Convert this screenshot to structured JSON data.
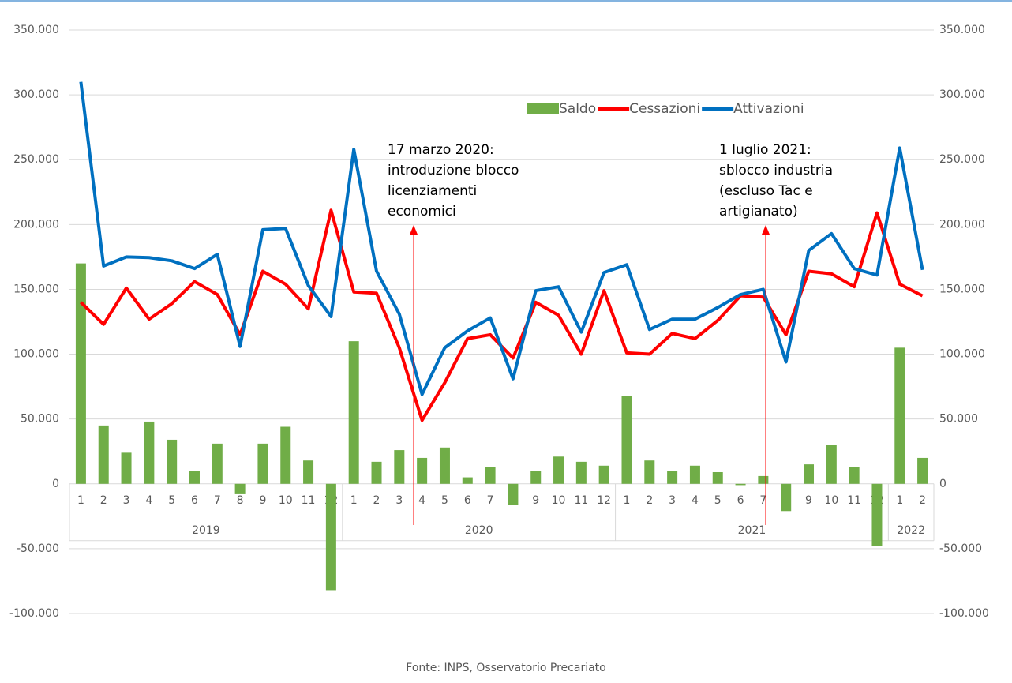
{
  "chart_data": {
    "type": "bar-line",
    "categories": [
      "1",
      "2",
      "3",
      "4",
      "5",
      "6",
      "7",
      "8",
      "9",
      "10",
      "11",
      "12",
      "1",
      "2",
      "3",
      "4",
      "5",
      "6",
      "7",
      "8",
      "9",
      "10",
      "11",
      "12",
      "1",
      "2",
      "3",
      "4",
      "5",
      "6",
      "7",
      "8",
      "9",
      "10",
      "11",
      "12",
      "1",
      "2"
    ],
    "groups": [
      "2019",
      "2020",
      "2021",
      "2022"
    ],
    "series": [
      {
        "name": "Saldo",
        "type": "bar",
        "color": "#70ad47",
        "values": [
          170000,
          45000,
          24000,
          48000,
          34000,
          10000,
          31000,
          -8000,
          31000,
          44000,
          18000,
          -82000,
          110000,
          17000,
          26000,
          20000,
          28000,
          5000,
          13000,
          -16000,
          10000,
          21000,
          17000,
          14000,
          68000,
          18000,
          10000,
          14000,
          9000,
          -1000,
          6000,
          -21000,
          15000,
          30000,
          13000,
          -48000,
          105000,
          20000
        ]
      },
      {
        "name": "Cessazioni",
        "type": "line",
        "color": "#ff0000",
        "values": [
          140000,
          123000,
          151000,
          127000,
          139000,
          156000,
          146000,
          115000,
          164000,
          154000,
          135000,
          211000,
          148000,
          147000,
          105000,
          49000,
          78000,
          112000,
          115000,
          97000,
          140000,
          130000,
          100000,
          149000,
          101000,
          100000,
          116000,
          112000,
          126000,
          145000,
          144000,
          115000,
          164000,
          162000,
          152000,
          209000,
          154000,
          145000
        ]
      },
      {
        "name": "Attivazioni",
        "type": "line",
        "color": "#0070c0",
        "values": [
          310000,
          168000,
          175000,
          174500,
          172000,
          166000,
          177000,
          106000,
          196000,
          197000,
          153000,
          129000,
          258000,
          164000,
          131000,
          69000,
          105000,
          118000,
          128000,
          81000,
          149000,
          152000,
          117000,
          163000,
          169000,
          119000,
          127000,
          127000,
          136000,
          146000,
          150000,
          94000,
          180000,
          193000,
          166000,
          161000,
          259000,
          165000
        ]
      }
    ],
    "ylim": [
      -100000,
      350000
    ],
    "yticks": [
      {
        "value": -100000,
        "label": "-100.000"
      },
      {
        "value": -50000,
        "label": "-50.000"
      },
      0,
      {
        "value": 50000,
        "label": "50.000"
      },
      {
        "value": 100000,
        "label": "100.000"
      },
      {
        "value": 150000,
        "label": "150.000"
      },
      {
        "value": 200000,
        "label": "200.000"
      },
      {
        "value": 250000,
        "label": "250.000"
      },
      {
        "value": 300000,
        "label": "300.000"
      },
      {
        "value": 350000,
        "label": "350.000"
      }
    ],
    "y2lim": [
      -100000,
      350000
    ],
    "y2ticks": [
      {
        "value": -100000,
        "label": "-100.000"
      },
      {
        "value": -50000,
        "label": "-50.000"
      },
      0,
      {
        "value": 50000,
        "label": "50.000"
      },
      {
        "value": 100000,
        "label": "100.000"
      },
      {
        "value": 150000,
        "label": "150.000"
      },
      {
        "value": 200000,
        "label": "200.000"
      },
      {
        "value": 250000,
        "label": "250.000"
      },
      {
        "value": 300000,
        "label": "300.000"
      },
      {
        "value": 350000,
        "label": "350.000"
      }
    ],
    "grid": true,
    "legend": "top-right",
    "annotations": [
      {
        "lines": [
          "17 marzo 2020:",
          "introduzione blocco",
          "licenziamenti",
          "economici"
        ]
      },
      {
        "lines": [
          "1 luglio 2021:",
          "sblocco industria",
          "(escluso Tac e",
          "artigianato)"
        ]
      }
    ],
    "source": "Fonte: INPS, Osservatorio Precariato"
  }
}
